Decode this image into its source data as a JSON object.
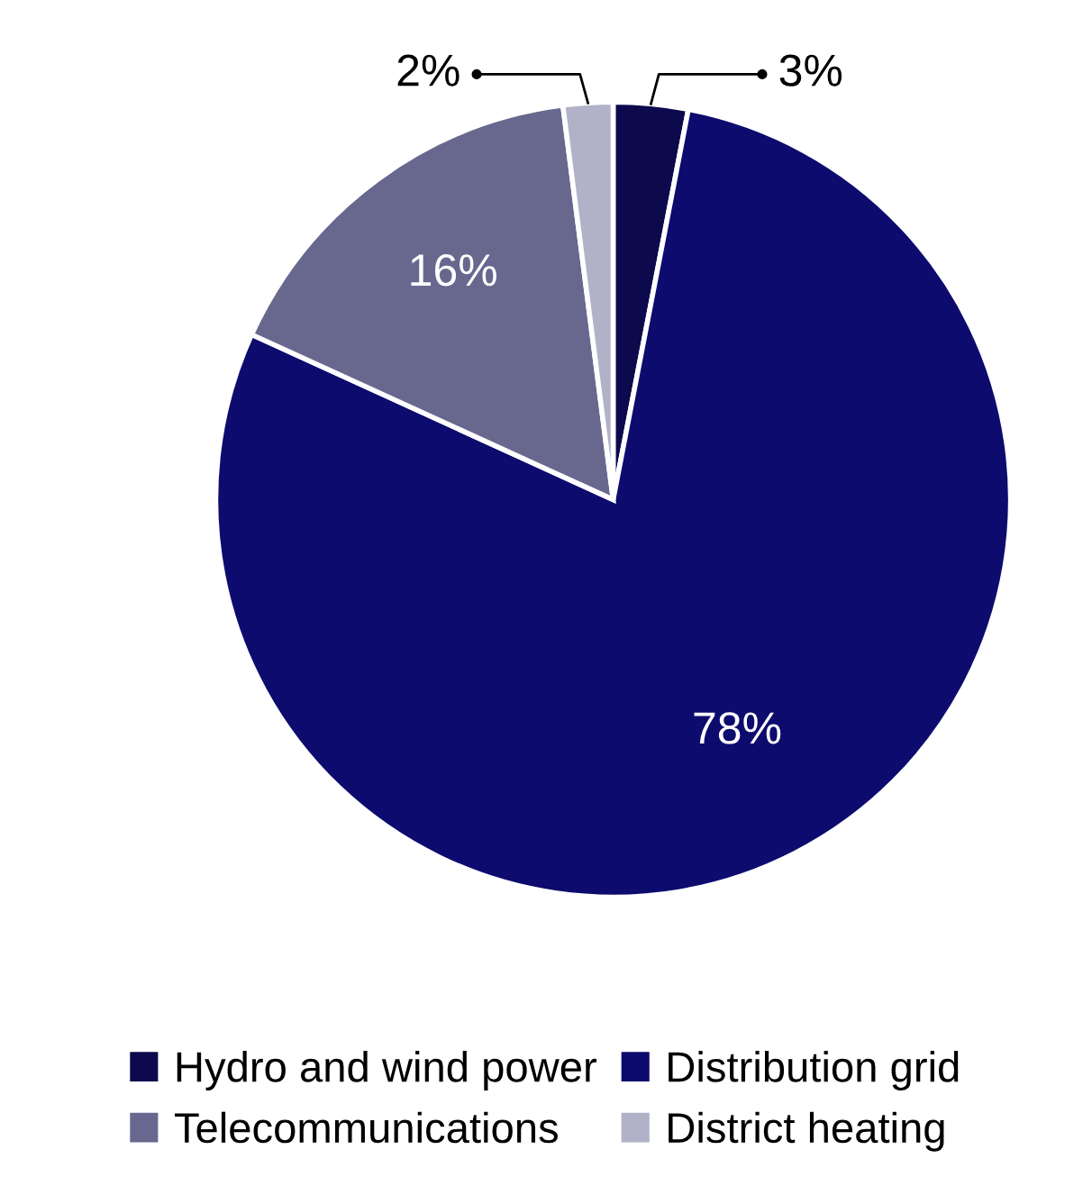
{
  "chart_data": {
    "type": "pie",
    "categories": [
      "Hydro and wind power",
      "Distribution grid",
      "Telecommunications",
      "District heating"
    ],
    "values": [
      3,
      78,
      16,
      2
    ],
    "value_labels": [
      "3%",
      "78%",
      "16%",
      "2%"
    ],
    "colors": [
      "#0c0a4d",
      "#0d0b6e",
      "#68688f",
      "#b1b1c8"
    ],
    "legend": "bottom"
  }
}
